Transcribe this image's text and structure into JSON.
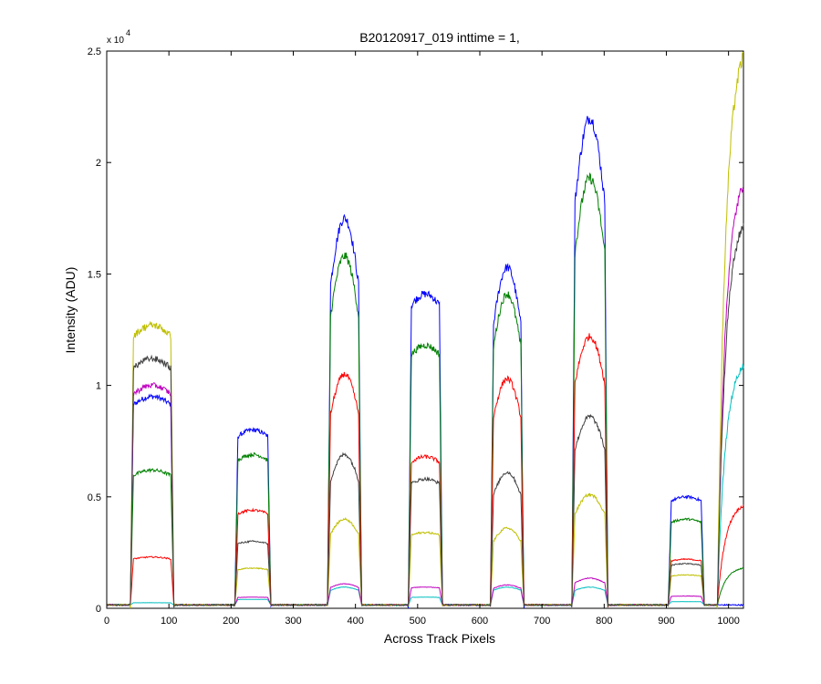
{
  "chart_data": {
    "type": "line",
    "title": "B20120917_019 inttime = 1,",
    "xlabel": "Across Track Pixels",
    "ylabel": "Intensity (ADU)",
    "y_exponent_label": "x 10",
    "y_exponent": "4",
    "xlim": [
      0,
      1024
    ],
    "ylim": [
      0,
      25000
    ],
    "grid": false,
    "x_ticks": [
      0,
      100,
      200,
      300,
      400,
      500,
      600,
      700,
      800,
      900,
      1000
    ],
    "x_tick_labels": [
      "0",
      "100",
      "200",
      "300",
      "400",
      "500",
      "600",
      "700",
      "800",
      "900",
      "1000"
    ],
    "y_ticks": [
      0,
      5000,
      10000,
      15000,
      20000,
      25000
    ],
    "y_tick_labels": [
      "0",
      "0.5",
      "1",
      "1.5",
      "2",
      "2.5"
    ],
    "baseline": 150,
    "segments": [
      {
        "start": 38,
        "end": 108
      },
      {
        "start": 206,
        "end": 264
      },
      {
        "start": 355,
        "end": 410
      },
      {
        "start": 485,
        "end": 540
      },
      {
        "start": 617,
        "end": 671
      },
      {
        "start": 748,
        "end": 806
      },
      {
        "start": 903,
        "end": 961
      },
      {
        "start": 982,
        "end": 1024
      }
    ],
    "series": [
      {
        "color": "#0000ff",
        "profiles": [
          "flat",
          "flat",
          "dome",
          "flat",
          "dome",
          "dome",
          "flat",
          "none"
        ],
        "peaks": [
          9500,
          8000,
          17500,
          14100,
          15300,
          22000,
          5000,
          0
        ]
      },
      {
        "color": "#008000",
        "profiles": [
          "flat",
          "flat",
          "dome",
          "flat",
          "dome",
          "dome",
          "flat",
          "rise"
        ],
        "peaks": [
          6200,
          6900,
          15800,
          11800,
          14100,
          19300,
          4000,
          1800
        ]
      },
      {
        "color": "#ff0000",
        "profiles": [
          "flat",
          "flat",
          "dome",
          "flat",
          "dome",
          "dome",
          "flat",
          "rise"
        ],
        "peaks": [
          2300,
          4400,
          10500,
          6800,
          10300,
          12200,
          2200,
          4600
        ]
      },
      {
        "color": "#00bfbf",
        "profiles": [
          "flat",
          "flat",
          "dome",
          "flat",
          "dome",
          "dome",
          "flat",
          "rise"
        ],
        "peaks": [
          250,
          400,
          950,
          500,
          950,
          950,
          300,
          10900
        ]
      },
      {
        "color": "#bf00bf",
        "profiles": [
          "flat",
          "flat",
          "dome",
          "flat",
          "dome",
          "dome",
          "flat",
          "rise"
        ],
        "peaks": [
          10000,
          500,
          1100,
          950,
          1050,
          1350,
          550,
          19000
        ]
      },
      {
        "color": "#bfbf00",
        "profiles": [
          "flat",
          "flat",
          "dome",
          "flat",
          "dome",
          "dome",
          "flat",
          "rise"
        ],
        "peaks": [
          12700,
          1800,
          4000,
          3400,
          3600,
          5100,
          1500,
          24800
        ]
      },
      {
        "color": "#404040",
        "profiles": [
          "flat",
          "flat",
          "dome",
          "flat",
          "dome",
          "dome",
          "flat",
          "rise"
        ],
        "peaks": [
          11200,
          3000,
          6900,
          5800,
          6100,
          8600,
          2000,
          17200
        ]
      }
    ]
  }
}
